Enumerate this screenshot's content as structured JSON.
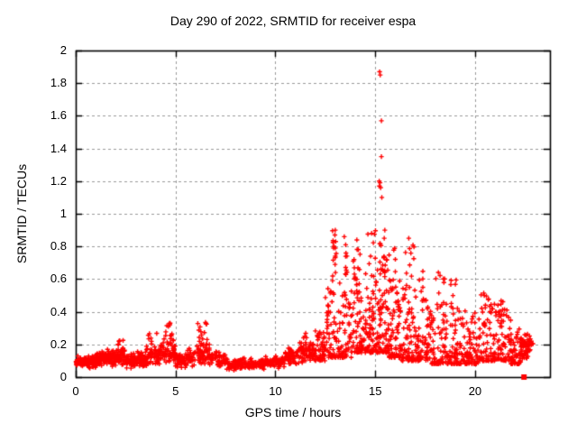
{
  "chart_data": {
    "type": "scatter",
    "title": "Day 290 of 2022, SRMTID for receiver espa",
    "xlabel": "GPS time / hours",
    "ylabel": "SRMTID / TECUs",
    "xlim": [
      0,
      23.75
    ],
    "ylim": [
      0,
      2
    ],
    "grid": true,
    "legend": null,
    "marker": {
      "shape": "plus",
      "color": "#ff0000",
      "size": 5
    },
    "grid_color": "#9a9a9a",
    "axis_color": "#000000",
    "xticks": [
      {
        "v": 0,
        "label": "0"
      },
      {
        "v": 5,
        "label": "5"
      },
      {
        "v": 10,
        "label": "10"
      },
      {
        "v": 15,
        "label": "15"
      },
      {
        "v": 20,
        "label": "20"
      }
    ],
    "yticks": [
      {
        "v": 0,
        "label": "0"
      },
      {
        "v": 0.2,
        "label": "0.2"
      },
      {
        "v": 0.4,
        "label": "0.4"
      },
      {
        "v": 0.6,
        "label": "0.6"
      },
      {
        "v": 0.8,
        "label": "0.8"
      },
      {
        "v": 1,
        "label": "1"
      },
      {
        "v": 1.2,
        "label": "1.2"
      },
      {
        "v": 1.4,
        "label": "1.4"
      },
      {
        "v": 1.6,
        "label": "1.6"
      },
      {
        "v": 1.8,
        "label": "1.8"
      },
      {
        "v": 2,
        "label": "2"
      }
    ],
    "notable_points": [
      [
        15.22,
        1.87
      ],
      [
        15.25,
        1.85
      ],
      [
        15.31,
        1.57
      ],
      [
        15.31,
        1.35
      ],
      [
        15.2,
        1.2
      ],
      [
        15.24,
        1.19
      ],
      [
        15.21,
        1.17
      ],
      [
        15.27,
        1.16
      ],
      [
        15.33,
        1.1
      ],
      [
        13.0,
        0.9
      ],
      [
        12.98,
        0.87
      ],
      [
        13.02,
        0.83
      ],
      [
        13.0,
        0.79
      ],
      [
        13.0,
        0.74
      ],
      [
        12.99,
        0.69
      ],
      [
        13.01,
        0.64
      ],
      [
        13.45,
        0.86
      ],
      [
        13.52,
        0.81
      ],
      [
        14.08,
        0.84
      ],
      [
        14.15,
        0.78
      ],
      [
        14.82,
        0.88
      ],
      [
        15.48,
        0.9
      ],
      [
        15.45,
        0.85
      ],
      [
        16.68,
        0.85
      ]
    ],
    "square_points": [
      [
        22.45,
        0.0
      ],
      [
        22.52,
        0.2
      ]
    ],
    "point_clusters": [
      {
        "x0": 0.0,
        "x1": 0.5,
        "y0": 0.06,
        "y1": 0.13,
        "n": 55,
        "mode": "band"
      },
      {
        "x0": 0.5,
        "x1": 1.0,
        "y0": 0.05,
        "y1": 0.14,
        "n": 60,
        "mode": "band"
      },
      {
        "x0": 1.0,
        "x1": 1.5,
        "y0": 0.06,
        "y1": 0.16,
        "n": 60,
        "mode": "band"
      },
      {
        "x0": 1.5,
        "x1": 2.0,
        "y0": 0.06,
        "y1": 0.18,
        "n": 60,
        "mode": "band"
      },
      {
        "x0": 2.0,
        "x1": 2.5,
        "y0": 0.06,
        "y1": 0.19,
        "n": 58,
        "mode": "band"
      },
      {
        "x0": 2.1,
        "x1": 2.4,
        "y0": 0.17,
        "y1": 0.23,
        "n": 7,
        "mode": "uniform"
      },
      {
        "x0": 2.5,
        "x1": 3.0,
        "y0": 0.05,
        "y1": 0.15,
        "n": 58,
        "mode": "band"
      },
      {
        "x0": 3.0,
        "x1": 3.5,
        "y0": 0.05,
        "y1": 0.16,
        "n": 55,
        "mode": "band"
      },
      {
        "x0": 3.5,
        "x1": 4.2,
        "y0": 0.06,
        "y1": 0.2,
        "n": 62,
        "mode": "band"
      },
      {
        "x0": 3.6,
        "x1": 4.1,
        "y0": 0.17,
        "y1": 0.27,
        "n": 8,
        "mode": "uniform"
      },
      {
        "x0": 4.2,
        "x1": 5.0,
        "y0": 0.07,
        "y1": 0.22,
        "n": 62,
        "mode": "band"
      },
      {
        "x0": 4.35,
        "x1": 4.9,
        "y0": 0.2,
        "y1": 0.33,
        "n": 18,
        "mode": "uniform"
      },
      {
        "x0": 5.0,
        "x1": 5.6,
        "y0": 0.05,
        "y1": 0.15,
        "n": 48,
        "mode": "band"
      },
      {
        "x0": 5.6,
        "x1": 6.0,
        "y0": 0.06,
        "y1": 0.18,
        "n": 32,
        "mode": "band"
      },
      {
        "x0": 6.0,
        "x1": 6.7,
        "y0": 0.07,
        "y1": 0.22,
        "n": 52,
        "mode": "band"
      },
      {
        "x0": 6.1,
        "x1": 6.6,
        "y0": 0.2,
        "y1": 0.34,
        "n": 14,
        "mode": "uniform"
      },
      {
        "x0": 6.7,
        "x1": 7.5,
        "y0": 0.05,
        "y1": 0.16,
        "n": 58,
        "mode": "band"
      },
      {
        "x0": 7.5,
        "x1": 8.5,
        "y0": 0.04,
        "y1": 0.12,
        "n": 70,
        "mode": "band"
      },
      {
        "x0": 8.5,
        "x1": 9.5,
        "y0": 0.04,
        "y1": 0.12,
        "n": 70,
        "mode": "band"
      },
      {
        "x0": 9.5,
        "x1": 10.5,
        "y0": 0.05,
        "y1": 0.14,
        "n": 70,
        "mode": "band"
      },
      {
        "x0": 10.5,
        "x1": 11.2,
        "y0": 0.07,
        "y1": 0.18,
        "n": 58,
        "mode": "band"
      },
      {
        "x0": 11.2,
        "x1": 12.0,
        "y0": 0.08,
        "y1": 0.22,
        "n": 62,
        "mode": "band"
      },
      {
        "x0": 11.4,
        "x1": 11.9,
        "y0": 0.18,
        "y1": 0.28,
        "n": 8,
        "mode": "uniform"
      },
      {
        "x0": 12.0,
        "x1": 12.5,
        "y0": 0.1,
        "y1": 0.3,
        "n": 52,
        "mode": "tail"
      },
      {
        "x0": 12.5,
        "x1": 13.1,
        "y0": 0.12,
        "y1": 0.55,
        "n": 58,
        "mode": "tail"
      },
      {
        "x0": 12.85,
        "x1": 13.05,
        "y0": 0.55,
        "y1": 0.9,
        "n": 10,
        "mode": "uniform"
      },
      {
        "x0": 13.1,
        "x1": 13.8,
        "y0": 0.12,
        "y1": 0.6,
        "n": 68,
        "mode": "tail"
      },
      {
        "x0": 13.3,
        "x1": 13.65,
        "y0": 0.6,
        "y1": 0.85,
        "n": 8,
        "mode": "uniform"
      },
      {
        "x0": 13.8,
        "x1": 14.5,
        "y0": 0.15,
        "y1": 0.65,
        "n": 68,
        "mode": "tail"
      },
      {
        "x0": 13.9,
        "x1": 14.35,
        "y0": 0.55,
        "y1": 0.8,
        "n": 12,
        "mode": "uniform"
      },
      {
        "x0": 14.5,
        "x1": 15.1,
        "y0": 0.15,
        "y1": 0.7,
        "n": 72,
        "mode": "tail"
      },
      {
        "x0": 14.6,
        "x1": 15.05,
        "y0": 0.6,
        "y1": 0.9,
        "n": 8,
        "mode": "uniform"
      },
      {
        "x0": 15.1,
        "x1": 15.7,
        "y0": 0.15,
        "y1": 0.75,
        "n": 85,
        "mode": "tail"
      },
      {
        "x0": 15.2,
        "x1": 15.6,
        "y0": 0.6,
        "y1": 0.85,
        "n": 10,
        "mode": "uniform"
      },
      {
        "x0": 15.7,
        "x1": 16.3,
        "y0": 0.12,
        "y1": 0.6,
        "n": 72,
        "mode": "tail"
      },
      {
        "x0": 15.8,
        "x1": 16.2,
        "y0": 0.55,
        "y1": 0.8,
        "n": 6,
        "mode": "uniform"
      },
      {
        "x0": 16.3,
        "x1": 17.0,
        "y0": 0.1,
        "y1": 0.55,
        "n": 72,
        "mode": "tail"
      },
      {
        "x0": 16.5,
        "x1": 17.0,
        "y0": 0.55,
        "y1": 0.85,
        "n": 10,
        "mode": "uniform"
      },
      {
        "x0": 17.0,
        "x1": 17.8,
        "y0": 0.1,
        "y1": 0.5,
        "n": 72,
        "mode": "tail"
      },
      {
        "x0": 17.2,
        "x1": 17.6,
        "y0": 0.45,
        "y1": 0.65,
        "n": 8,
        "mode": "uniform"
      },
      {
        "x0": 17.8,
        "x1": 18.6,
        "y0": 0.08,
        "y1": 0.45,
        "n": 72,
        "mode": "tail"
      },
      {
        "x0": 18.0,
        "x1": 18.5,
        "y0": 0.45,
        "y1": 0.65,
        "n": 8,
        "mode": "uniform"
      },
      {
        "x0": 18.6,
        "x1": 19.4,
        "y0": 0.08,
        "y1": 0.45,
        "n": 72,
        "mode": "tail"
      },
      {
        "x0": 18.7,
        "x1": 19.1,
        "y0": 0.45,
        "y1": 0.62,
        "n": 6,
        "mode": "uniform"
      },
      {
        "x0": 19.4,
        "x1": 20.2,
        "y0": 0.08,
        "y1": 0.42,
        "n": 72,
        "mode": "tail"
      },
      {
        "x0": 20.2,
        "x1": 21.0,
        "y0": 0.1,
        "y1": 0.45,
        "n": 72,
        "mode": "tail"
      },
      {
        "x0": 20.3,
        "x1": 20.7,
        "y0": 0.42,
        "y1": 0.52,
        "n": 8,
        "mode": "uniform"
      },
      {
        "x0": 21.0,
        "x1": 21.8,
        "y0": 0.1,
        "y1": 0.42,
        "n": 72,
        "mode": "tail"
      },
      {
        "x0": 21.1,
        "x1": 21.5,
        "y0": 0.4,
        "y1": 0.5,
        "n": 6,
        "mode": "uniform"
      },
      {
        "x0": 21.8,
        "x1": 22.3,
        "y0": 0.08,
        "y1": 0.3,
        "n": 52,
        "mode": "tail"
      },
      {
        "x0": 22.3,
        "x1": 22.65,
        "y0": 0.08,
        "y1": 0.3,
        "n": 48,
        "mode": "band"
      },
      {
        "x0": 22.65,
        "x1": 22.9,
        "y0": 0.13,
        "y1": 0.26,
        "n": 18,
        "mode": "band"
      }
    ]
  }
}
